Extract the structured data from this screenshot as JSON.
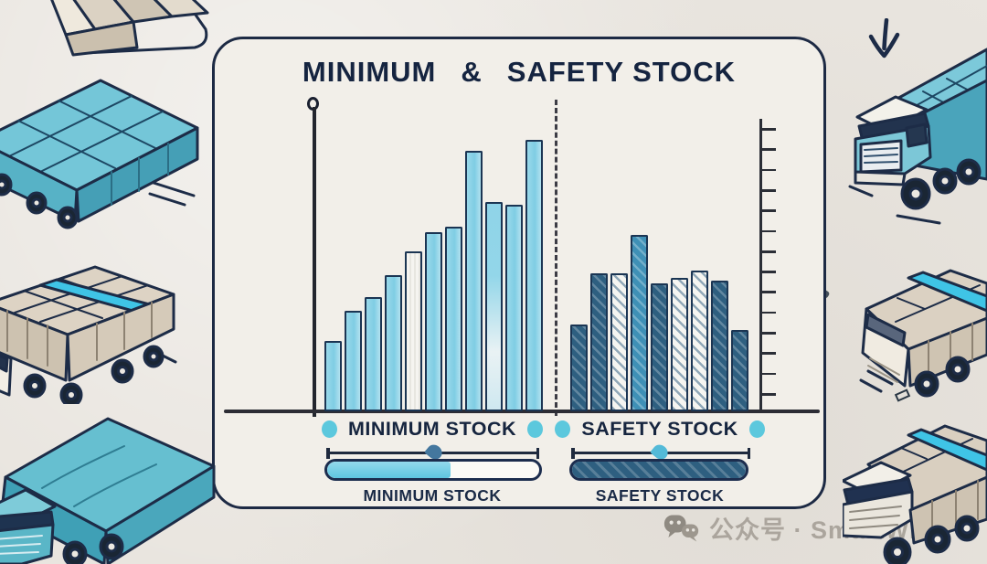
{
  "header": {
    "arrow_icon": "down-arrow"
  },
  "card": {
    "title": "MINIMUM & SAFETY STOCK",
    "title_parts": [
      "MINIMUM",
      "&",
      "SAFETY STOCK"
    ]
  },
  "watermark": {
    "icon": "wechat-icon",
    "text": "公众号 · SmartWMS"
  },
  "chart_data": {
    "type": "bar",
    "title": "MINIMUM & SAFETY STOCK",
    "xlabel": "",
    "ylabel": "",
    "ylim": [
      0,
      100
    ],
    "grid": false,
    "axes": {
      "left_axis": "line-with-circle-cap",
      "right_axis": "ruler-with-ticks",
      "right_axis_tick_count": 14,
      "group_divider": "dashed-vertical-line"
    },
    "groups": [
      {
        "name": "MINIMUM STOCK",
        "legend_label": "MINIMUM STOCK",
        "bar_color": "#7fcde4",
        "values": [
          26,
          37,
          42,
          50,
          59,
          66,
          68,
          96,
          77,
          76,
          100
        ],
        "styles": [
          "lightblue",
          "lightblue",
          "lightblue",
          "lightblue",
          "white-texture",
          "lightblue",
          "lightblue",
          "lightblue",
          "lightblue-fade",
          "lightblue",
          "lightblue"
        ]
      },
      {
        "name": "SAFETY STOCK",
        "legend_label": "SAFETY STOCK",
        "bar_color": "#2e5f80",
        "values": [
          32,
          51,
          51,
          65,
          47,
          49,
          52,
          48,
          30
        ],
        "styles": [
          "dark-hatch",
          "dark-hatch",
          "white-hatch",
          "medium-hatch",
          "dark-hatch",
          "white-hatch",
          "white-hatch",
          "dark-hatch",
          "dark-hatch"
        ]
      }
    ],
    "legend_position": "below",
    "legend_dot_color": "#5cc8dd",
    "sliders": [
      {
        "group": "MINIMUM STOCK",
        "position": 0.51,
        "handle_color": "#44779e"
      },
      {
        "group": "SAFETY STOCK",
        "position": 0.5,
        "handle_color": "#54bad8"
      }
    ],
    "progress_bars": [
      {
        "label": "MINIMUM STOCK",
        "fill": 0.58,
        "style": "lightblue"
      },
      {
        "label": "SAFETY STOCK",
        "fill": 1.0,
        "style": "dark-hatch"
      }
    ],
    "colors": {
      "light_blue": "#7fcde4",
      "dark_blue": "#2e5f80",
      "medium_blue": "#3f90b6",
      "outline": "#1b3553",
      "title": "#152440"
    }
  }
}
